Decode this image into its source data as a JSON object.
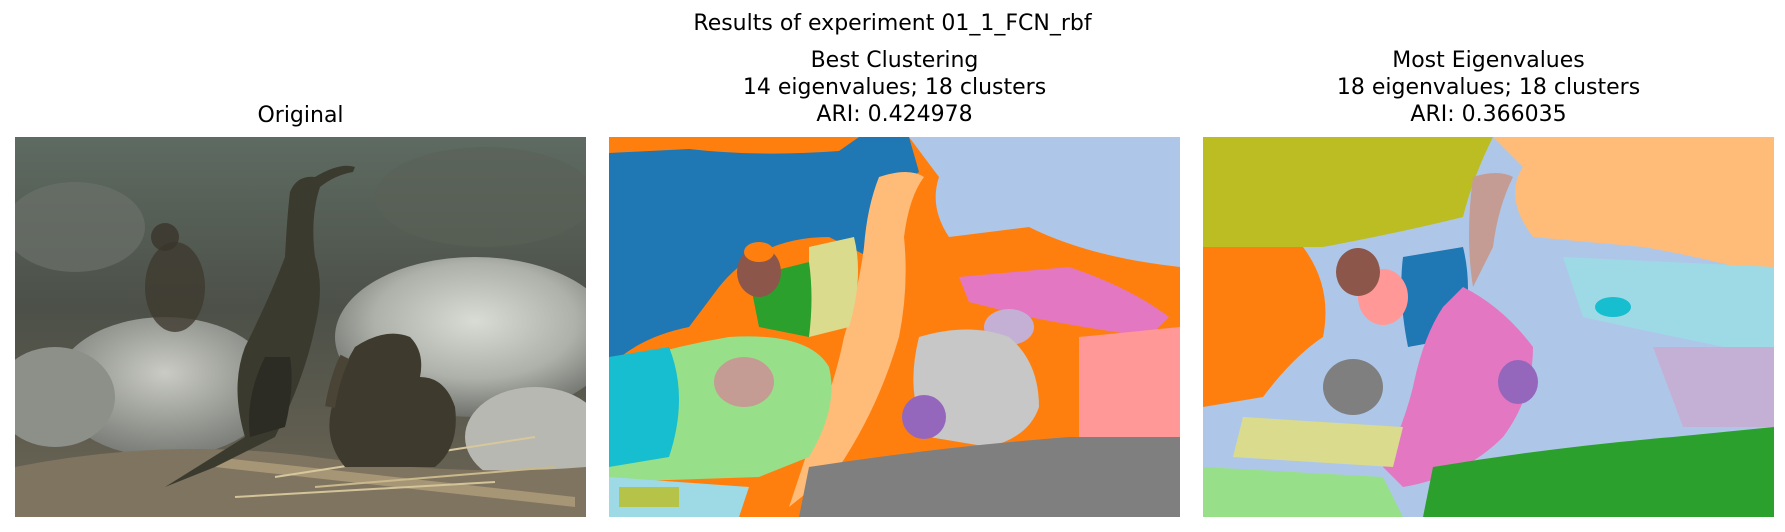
{
  "figure": {
    "suptitle": "Results of experiment 01_1_FCN_rbf"
  },
  "panels": {
    "original": {
      "title": "Original"
    },
    "best": {
      "title_line1": "Best Clustering",
      "title_line2": "14 eigenvalues; 18 clusters",
      "title_line3": "ARI: 0.424978"
    },
    "most": {
      "title_line1": "Most Eigenvalues",
      "title_line2": "18 eigenvalues; 18 clusters",
      "title_line3": "ARI: 0.366035"
    }
  },
  "colors": {
    "tab_blue": "#1f77b4",
    "tab_lightblue": "#aec7e8",
    "tab_orange": "#ff7f0e",
    "tab_lightorange": "#ffbb78",
    "tab_green": "#2ca02c",
    "tab_lightgreen": "#98df8a",
    "tab_red": "#d62728",
    "tab_pink": "#ff9896",
    "tab_purple": "#9467bd",
    "tab_lightpurple": "#c5b0d5",
    "tab_brown": "#8c564b",
    "tab_lightbrown": "#c49c94",
    "tab_magenta": "#e377c2",
    "tab_lightmagenta": "#f7b6d2",
    "tab_gray": "#7f7f7f",
    "tab_lightgray": "#c7c7c7",
    "tab_olive": "#bcbd22",
    "tab_lightolive": "#dbdb8d",
    "tab_cyan": "#17becf",
    "tab_lightcyan": "#9edae5"
  }
}
